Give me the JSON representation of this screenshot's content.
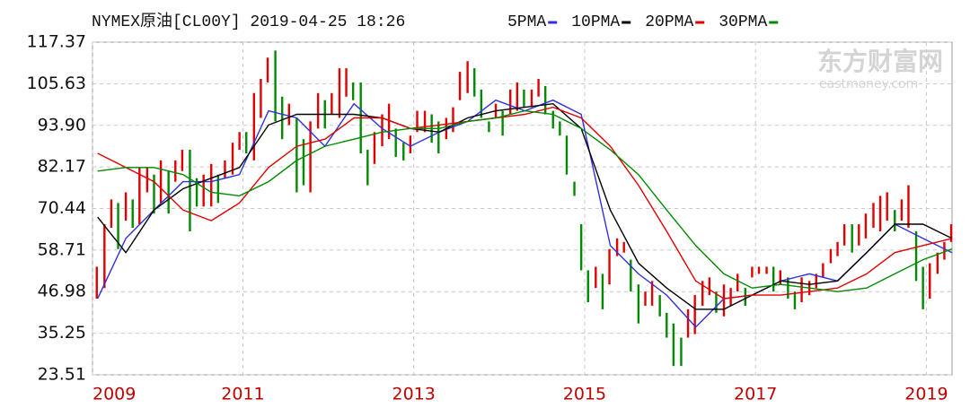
{
  "chart_data": {
    "type": "candlestick",
    "title": "NYMEX原油[CL00Y] 2019-04-25 18:26",
    "watermark": "东方财富网",
    "watermark_sub": "eastmoney.com",
    "up_color": "#e00000",
    "down_color": "#008a00",
    "xlim": [
      2009.24,
      2019.3
    ],
    "xticks": [
      {
        "value": 2009.24,
        "label": "2009"
      },
      2011,
      2013,
      2015,
      2017,
      2019
    ],
    "ylim": [
      23.51,
      117.37
    ],
    "yticks": [
      117.37,
      105.63,
      {
        "value": 93.9,
        "label": "93.90"
      },
      82.17,
      70.44,
      58.71,
      46.98,
      35.25,
      23.51
    ],
    "grid": true,
    "bars": {
      "x": [
        2009.29,
        2009.38,
        2009.46,
        2009.54,
        2009.63,
        2009.71,
        2009.79,
        2009.88,
        2009.96,
        2010.04,
        2010.13,
        2010.21,
        2010.29,
        2010.38,
        2010.46,
        2010.54,
        2010.63,
        2010.71,
        2010.79,
        2010.88,
        2010.96,
        2011.04,
        2011.13,
        2011.21,
        2011.29,
        2011.38,
        2011.46,
        2011.54,
        2011.63,
        2011.71,
        2011.79,
        2011.88,
        2011.96,
        2012.04,
        2012.13,
        2012.21,
        2012.29,
        2012.38,
        2012.46,
        2012.54,
        2012.63,
        2012.71,
        2012.79,
        2012.88,
        2012.96,
        2013.04,
        2013.13,
        2013.21,
        2013.29,
        2013.38,
        2013.46,
        2013.54,
        2013.63,
        2013.71,
        2013.79,
        2013.88,
        2013.96,
        2014.04,
        2014.13,
        2014.21,
        2014.29,
        2014.38,
        2014.46,
        2014.54,
        2014.63,
        2014.71,
        2014.79,
        2014.88,
        2014.96,
        2015.04,
        2015.13,
        2015.21,
        2015.29,
        2015.38,
        2015.46,
        2015.54,
        2015.63,
        2015.71,
        2015.79,
        2015.88,
        2015.96,
        2016.04,
        2016.13,
        2016.21,
        2016.29,
        2016.38,
        2016.46,
        2016.54,
        2016.63,
        2016.71,
        2016.79,
        2016.88,
        2016.96,
        2017.04,
        2017.13,
        2017.21,
        2017.29,
        2017.38,
        2017.46,
        2017.54,
        2017.63,
        2017.71,
        2017.79,
        2017.88,
        2017.96,
        2018.04,
        2018.13,
        2018.21,
        2018.29,
        2018.38,
        2018.46,
        2018.54,
        2018.63,
        2018.71,
        2018.79,
        2018.88,
        2018.96,
        2019.04,
        2019.13,
        2019.21,
        2019.29
      ],
      "low": [
        45,
        48,
        65,
        59,
        67,
        65,
        66,
        75,
        69,
        72,
        69,
        78,
        81,
        64,
        71,
        71,
        71,
        72,
        79,
        80,
        87,
        86,
        84,
        96,
        106,
        95,
        90,
        94,
        75,
        77,
        75,
        93,
        93,
        97,
        96,
        102,
        101,
        86,
        77,
        83,
        88,
        90,
        85,
        84,
        86,
        92,
        92,
        89,
        86,
        90,
        92,
        101,
        103,
        102,
        96,
        92,
        96,
        91,
        97,
        98,
        99,
        99,
        102,
        97,
        93,
        91,
        80,
        74,
        53,
        44,
        48,
        42,
        49,
        57,
        58,
        47,
        38,
        43,
        43,
        40,
        34,
        26,
        26,
        34,
        35,
        43,
        46,
        41,
        40,
        43,
        47,
        43,
        51,
        52,
        52,
        47,
        49,
        45,
        42,
        44,
        46,
        48,
        51,
        55,
        57,
        60,
        58,
        60,
        62,
        65,
        64,
        67,
        64,
        67,
        65,
        50,
        42,
        45,
        52,
        56,
        61
      ],
      "high": [
        54,
        66,
        73,
        72,
        75,
        73,
        82,
        82,
        80,
        84,
        81,
        84,
        87,
        87,
        79,
        80,
        83,
        80,
        84,
        89,
        92,
        92,
        103,
        107,
        113,
        115,
        102,
        100,
        96,
        90,
        95,
        103,
        101,
        103,
        110,
        110,
        106,
        106,
        87,
        92,
        97,
        100,
        93,
        89,
        91,
        98,
        98,
        97,
        95,
        96,
        99,
        109,
        112,
        110,
        104,
        95,
        100,
        98,
        104,
        106,
        104,
        104,
        107,
        105,
        98,
        95,
        91,
        78,
        66,
        53,
        54,
        52,
        59,
        62,
        61,
        56,
        49,
        47,
        50,
        46,
        41,
        38,
        34,
        42,
        46,
        50,
        51,
        47,
        49,
        48,
        52,
        48,
        54,
        54,
        54,
        54,
        53,
        51,
        47,
        51,
        50,
        52,
        55,
        59,
        61,
        66,
        66,
        66,
        69,
        72,
        74,
        75,
        70,
        73,
        77,
        64,
        54,
        55,
        58,
        61,
        66
      ]
    },
    "ma_x": [
      2009.3,
      2009.63,
      2009.96,
      2010.3,
      2010.63,
      2010.96,
      2011.3,
      2011.63,
      2011.96,
      2012.3,
      2012.63,
      2012.96,
      2013.3,
      2013.63,
      2013.96,
      2014.3,
      2014.63,
      2014.96,
      2015.3,
      2015.63,
      2015.96,
      2016.3,
      2016.63,
      2016.96,
      2017.3,
      2017.63,
      2017.96,
      2018.3,
      2018.63,
      2018.96,
      2019.3
    ],
    "series": [
      {
        "name": "5PMA",
        "color": "#3030e0",
        "values": [
          45,
          62,
          70,
          78,
          78,
          80,
          98,
          96,
          88,
          100,
          93,
          88,
          92,
          95,
          101,
          98,
          101,
          97,
          60,
          52,
          46,
          37,
          45,
          46,
          50,
          52,
          50,
          58,
          66,
          62,
          58
        ]
      },
      {
        "name": "10PMA",
        "color": "#000000",
        "values": [
          68,
          58,
          70,
          76,
          79,
          82,
          94,
          97,
          97,
          97,
          96,
          93,
          92,
          96,
          98,
          99,
          100,
          93,
          70,
          55,
          48,
          42,
          42,
          46,
          50,
          49,
          50,
          58,
          66,
          66,
          62
        ]
      },
      {
        "name": "20PMA",
        "color": "#e00000",
        "values": [
          86,
          82,
          78,
          70,
          67,
          72,
          82,
          88,
          90,
          96,
          96,
          93,
          94,
          95,
          96,
          97,
          99,
          96,
          88,
          77,
          64,
          50,
          45,
          46,
          46,
          47,
          48,
          52,
          58,
          60,
          62
        ]
      },
      {
        "name": "30PMA",
        "color": "#008a00",
        "values": [
          81,
          82,
          82,
          80,
          75,
          74,
          78,
          84,
          88,
          90,
          92,
          93,
          93,
          95,
          96,
          98,
          97,
          93,
          87,
          80,
          70,
          60,
          52,
          48,
          49,
          48,
          47,
          48,
          52,
          56,
          59
        ]
      }
    ]
  }
}
